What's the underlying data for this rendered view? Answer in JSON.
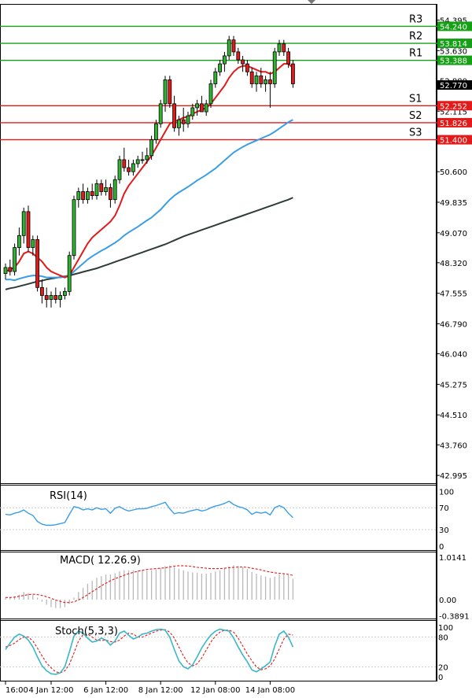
{
  "chart_data": [
    {
      "type": "candlestick",
      "title": "",
      "y_ticks": [
        "54.395",
        "53.630",
        "52.880",
        "52.115",
        "51.360",
        "50.600",
        "49.835",
        "49.070",
        "48.320",
        "47.555",
        "46.790",
        "46.040",
        "45.275",
        "44.510",
        "43.760",
        "42.995"
      ],
      "x_ticks": [
        "16:00",
        "4 Jan 12:00",
        "6 Jan 12:00",
        "8 Jan 12:00",
        "12 Jan 08:00",
        "14 Jan 08:00"
      ],
      "ylim": [
        42.8,
        54.8
      ],
      "last_price": "52.770",
      "levels": [
        {
          "name": "R3",
          "value": "54.240",
          "color": "#16a016"
        },
        {
          "name": "R2",
          "value": "53.814",
          "color": "#16a016"
        },
        {
          "name": "R1",
          "value": "53.388",
          "color": "#16a016"
        },
        {
          "name": "S1",
          "value": "52.252",
          "color": "#e31a1a"
        },
        {
          "name": "S2",
          "value": "51.826",
          "color": "#e31a1a"
        },
        {
          "name": "S3",
          "value": "51.400",
          "color": "#e31a1a"
        }
      ],
      "candles": [
        [
          48.05,
          48.3,
          47.9,
          48.2
        ],
        [
          48.2,
          48.4,
          48.0,
          48.1
        ],
        [
          48.1,
          48.8,
          48.0,
          48.7
        ],
        [
          48.7,
          49.2,
          48.5,
          49.0
        ],
        [
          49.0,
          49.7,
          48.8,
          49.6
        ],
        [
          49.6,
          49.75,
          48.6,
          48.7
        ],
        [
          48.7,
          49.0,
          48.5,
          48.9
        ],
        [
          48.9,
          49.0,
          47.6,
          47.7
        ],
        [
          47.7,
          47.9,
          47.3,
          47.5
        ],
        [
          47.5,
          47.7,
          47.2,
          47.4
        ],
        [
          47.4,
          47.6,
          47.2,
          47.5
        ],
        [
          47.5,
          47.7,
          47.3,
          47.4
        ],
        [
          47.4,
          47.6,
          47.2,
          47.5
        ],
        [
          47.5,
          47.7,
          47.4,
          47.6
        ],
        [
          47.6,
          48.6,
          47.5,
          48.5
        ],
        [
          48.5,
          50.0,
          48.4,
          49.9
        ],
        [
          49.9,
          50.2,
          49.7,
          50.1
        ],
        [
          50.1,
          50.3,
          49.8,
          49.9
        ],
        [
          49.9,
          50.2,
          49.8,
          50.1
        ],
        [
          50.1,
          50.3,
          49.9,
          50.0
        ],
        [
          50.0,
          50.4,
          49.9,
          50.3
        ],
        [
          50.3,
          50.4,
          50.0,
          50.1
        ],
        [
          50.1,
          50.4,
          50.0,
          50.2
        ],
        [
          50.2,
          50.3,
          49.7,
          49.9
        ],
        [
          49.9,
          50.5,
          49.8,
          50.4
        ],
        [
          50.4,
          51.0,
          50.3,
          50.9
        ],
        [
          50.9,
          51.2,
          50.6,
          50.7
        ],
        [
          50.7,
          50.9,
          50.5,
          50.6
        ],
        [
          50.6,
          50.9,
          50.5,
          50.8
        ],
        [
          50.8,
          51.0,
          50.7,
          50.9
        ],
        [
          50.9,
          51.1,
          50.8,
          50.9
        ],
        [
          50.9,
          51.2,
          50.8,
          51.0
        ],
        [
          51.0,
          51.5,
          50.9,
          51.4
        ],
        [
          51.4,
          51.9,
          51.3,
          51.8
        ],
        [
          51.8,
          52.4,
          51.7,
          52.3
        ],
        [
          52.3,
          53.0,
          52.1,
          52.9
        ],
        [
          52.9,
          53.0,
          52.2,
          52.3
        ],
        [
          52.3,
          52.5,
          51.6,
          51.7
        ],
        [
          51.7,
          52.0,
          51.5,
          51.9
        ],
        [
          51.9,
          52.2,
          51.6,
          51.8
        ],
        [
          51.8,
          52.1,
          51.7,
          52.0
        ],
        [
          52.0,
          52.3,
          51.9,
          52.2
        ],
        [
          52.2,
          52.4,
          52.0,
          52.3
        ],
        [
          52.3,
          52.5,
          52.1,
          52.1
        ],
        [
          52.1,
          52.4,
          52.0,
          52.3
        ],
        [
          52.3,
          52.9,
          52.2,
          52.8
        ],
        [
          52.8,
          53.2,
          52.7,
          53.1
        ],
        [
          53.1,
          53.4,
          53.0,
          53.3
        ],
        [
          53.3,
          53.6,
          53.1,
          53.5
        ],
        [
          53.5,
          54.0,
          53.4,
          53.9
        ],
        [
          53.9,
          54.0,
          53.5,
          53.6
        ],
        [
          53.6,
          53.7,
          53.3,
          53.4
        ],
        [
          53.4,
          53.5,
          53.1,
          53.3
        ],
        [
          53.3,
          53.4,
          53.0,
          53.1
        ],
        [
          53.1,
          53.2,
          52.7,
          52.8
        ],
        [
          52.8,
          53.1,
          52.6,
          53.0
        ],
        [
          53.0,
          53.2,
          52.7,
          52.8
        ],
        [
          52.8,
          53.0,
          52.6,
          52.9
        ],
        [
          52.9,
          53.1,
          52.2,
          52.8
        ],
        [
          52.8,
          53.7,
          52.7,
          53.6
        ],
        [
          53.6,
          53.9,
          53.5,
          53.8
        ],
        [
          53.8,
          53.9,
          53.5,
          53.6
        ],
        [
          53.6,
          53.7,
          53.2,
          53.3
        ],
        [
          53.3,
          53.4,
          52.7,
          52.8
        ]
      ],
      "ma_red": [
        48.1,
        48.15,
        48.2,
        48.35,
        48.55,
        48.6,
        48.55,
        48.45,
        48.35,
        48.2,
        48.1,
        48.05,
        48.0,
        47.95,
        48.0,
        48.2,
        48.4,
        48.6,
        48.8,
        48.95,
        49.05,
        49.15,
        49.25,
        49.35,
        49.5,
        49.75,
        50.05,
        50.25,
        50.4,
        50.55,
        50.7,
        50.85,
        51.0,
        51.2,
        51.4,
        51.6,
        51.8,
        51.85,
        51.9,
        51.95,
        51.98,
        52.05,
        52.1,
        52.15,
        52.2,
        52.3,
        52.45,
        52.6,
        52.75,
        52.95,
        53.1,
        53.2,
        53.25,
        53.25,
        53.2,
        53.15,
        53.1,
        53.1,
        53.05,
        53.1,
        53.2,
        53.3,
        53.3,
        53.2
      ],
      "ma_blue": [
        47.9,
        47.9,
        47.88,
        47.92,
        47.95,
        47.98,
        48.0,
        48.0,
        47.98,
        47.95,
        47.95,
        47.95,
        47.95,
        47.97,
        48.0,
        48.1,
        48.2,
        48.3,
        48.4,
        48.48,
        48.55,
        48.62,
        48.68,
        48.75,
        48.82,
        48.9,
        49.0,
        49.08,
        49.15,
        49.22,
        49.3,
        49.38,
        49.45,
        49.55,
        49.65,
        49.78,
        49.9,
        50.0,
        50.08,
        50.15,
        50.22,
        50.3,
        50.38,
        50.45,
        50.52,
        50.6,
        50.68,
        50.78,
        50.88,
        50.98,
        51.08,
        51.15,
        51.22,
        51.28,
        51.33,
        51.38,
        51.43,
        51.48,
        51.53,
        51.6,
        51.68,
        51.76,
        51.84,
        51.9
      ],
      "ma_dark": [
        47.65,
        47.68,
        47.7,
        47.73,
        47.76,
        47.79,
        47.82,
        47.85,
        47.87,
        47.9,
        47.92,
        47.94,
        47.96,
        47.98,
        48.0,
        48.03,
        48.06,
        48.09,
        48.12,
        48.15,
        48.18,
        48.22,
        48.26,
        48.3,
        48.34,
        48.38,
        48.42,
        48.46,
        48.5,
        48.54,
        48.58,
        48.62,
        48.66,
        48.7,
        48.74,
        48.78,
        48.83,
        48.88,
        48.93,
        48.98,
        49.02,
        49.06,
        49.1,
        49.14,
        49.18,
        49.22,
        49.26,
        49.3,
        49.34,
        49.38,
        49.42,
        49.46,
        49.5,
        49.54,
        49.58,
        49.62,
        49.66,
        49.7,
        49.74,
        49.78,
        49.82,
        49.86,
        49.9,
        49.95
      ]
    },
    {
      "type": "line",
      "title": "RSI(14)",
      "y_ticks": [
        "100",
        "70",
        "30",
        "0"
      ],
      "ylim": [
        0,
        100
      ],
      "values": [
        58,
        57,
        60,
        62,
        66,
        60,
        56,
        45,
        40,
        38,
        38,
        39,
        41,
        43,
        58,
        72,
        70,
        66,
        68,
        66,
        70,
        67,
        68,
        60,
        69,
        72,
        67,
        64,
        66,
        68,
        68,
        69,
        72,
        74,
        77,
        80,
        68,
        59,
        61,
        60,
        63,
        65,
        67,
        64,
        66,
        70,
        73,
        75,
        78,
        82,
        76,
        72,
        70,
        66,
        58,
        62,
        60,
        62,
        57,
        70,
        74,
        70,
        60,
        52
      ]
    },
    {
      "type": "bar",
      "title": "MACD( 12.26.9)",
      "y_ticks": [
        "1.0141",
        "0.00",
        "-0.3891"
      ],
      "ylim": [
        -0.45,
        1.1
      ],
      "values": [
        0.05,
        0.06,
        0.08,
        0.12,
        0.18,
        0.16,
        0.12,
        0.05,
        -0.05,
        -0.12,
        -0.18,
        -0.2,
        -0.2,
        -0.18,
        -0.1,
        0.05,
        0.18,
        0.28,
        0.38,
        0.45,
        0.52,
        0.56,
        0.6,
        0.6,
        0.63,
        0.68,
        0.7,
        0.7,
        0.7,
        0.7,
        0.69,
        0.69,
        0.7,
        0.72,
        0.75,
        0.8,
        0.82,
        0.78,
        0.74,
        0.7,
        0.67,
        0.65,
        0.64,
        0.62,
        0.62,
        0.64,
        0.67,
        0.7,
        0.74,
        0.8,
        0.82,
        0.8,
        0.77,
        0.73,
        0.66,
        0.62,
        0.58,
        0.55,
        0.52,
        0.55,
        0.6,
        0.62,
        0.58,
        0.5
      ],
      "signal": [
        0.05,
        0.05,
        0.06,
        0.08,
        0.1,
        0.12,
        0.13,
        0.12,
        0.1,
        0.07,
        0.03,
        -0.01,
        -0.04,
        -0.07,
        -0.07,
        -0.05,
        -0.01,
        0.05,
        0.12,
        0.19,
        0.26,
        0.33,
        0.39,
        0.45,
        0.5,
        0.54,
        0.58,
        0.62,
        0.65,
        0.68,
        0.7,
        0.72,
        0.73,
        0.74,
        0.75,
        0.76,
        0.78,
        0.8,
        0.81,
        0.81,
        0.8,
        0.79,
        0.77,
        0.76,
        0.75,
        0.74,
        0.74,
        0.74,
        0.75,
        0.76,
        0.77,
        0.78,
        0.78,
        0.77,
        0.75,
        0.73,
        0.71,
        0.68,
        0.66,
        0.64,
        0.63,
        0.62,
        0.6,
        0.58
      ]
    },
    {
      "type": "line",
      "title": "Stoch(5,3,3)",
      "y_ticks": [
        "100",
        "80",
        "20",
        "0"
      ],
      "ylim": [
        0,
        100
      ],
      "k": [
        55,
        68,
        80,
        86,
        82,
        74,
        60,
        40,
        22,
        12,
        6,
        5,
        8,
        20,
        50,
        82,
        92,
        88,
        78,
        70,
        72,
        78,
        74,
        64,
        72,
        88,
        92,
        84,
        76,
        80,
        86,
        88,
        92,
        95,
        96,
        94,
        80,
        55,
        32,
        20,
        16,
        24,
        40,
        58,
        72,
        84,
        92,
        96,
        94,
        92,
        78,
        60,
        44,
        30,
        14,
        10,
        16,
        22,
        30,
        62,
        86,
        92,
        80,
        60
      ],
      "d": [
        60,
        63,
        68,
        75,
        80,
        80,
        72,
        58,
        42,
        28,
        18,
        10,
        8,
        12,
        25,
        48,
        72,
        85,
        86,
        80,
        74,
        73,
        74,
        71,
        70,
        74,
        82,
        88,
        86,
        80,
        80,
        84,
        88,
        92,
        94,
        95,
        90,
        78,
        60,
        42,
        28,
        22,
        26,
        38,
        54,
        70,
        82,
        90,
        94,
        94,
        90,
        78,
        62,
        46,
        32,
        20,
        14,
        16,
        22,
        36,
        56,
        76,
        86,
        84
      ]
    }
  ]
}
